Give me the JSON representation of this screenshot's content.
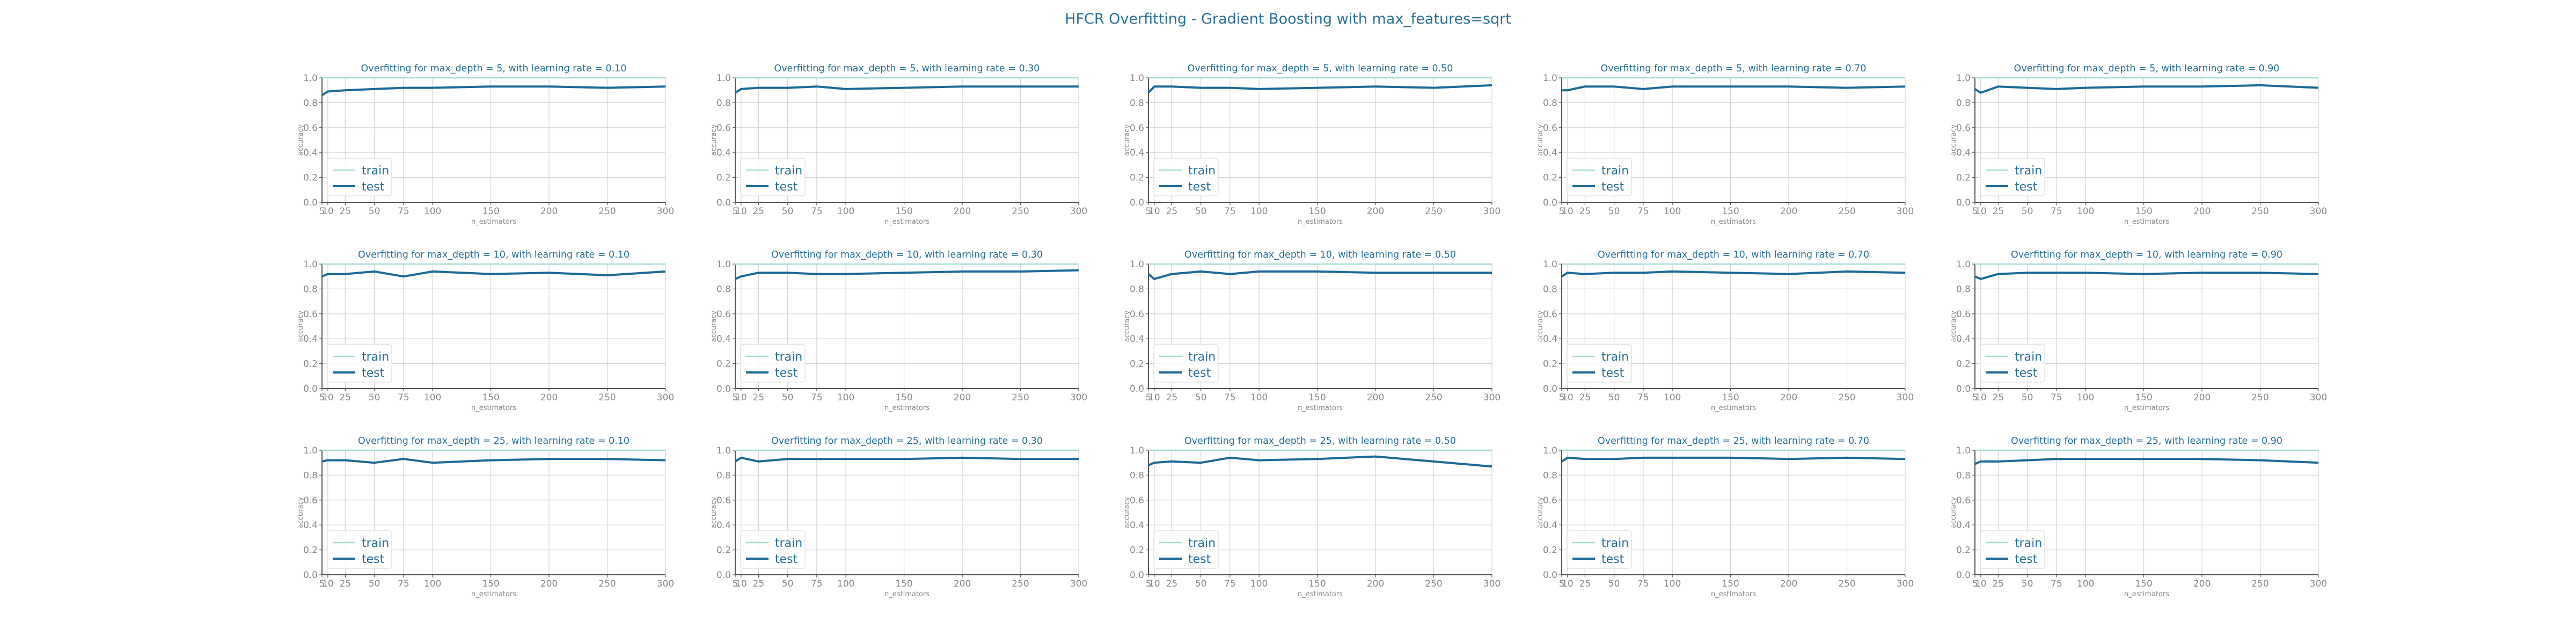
{
  "figure": {
    "title": "HFCR Overfitting - Gradient Boosting with max_features=sqrt"
  },
  "colors": {
    "train": "#a8dcd6",
    "test": "#1d6a96",
    "title": "#2a6f97",
    "grid": "#d4d4d4",
    "axis": "#555555",
    "tick_text": "#8a8a8a"
  },
  "chart_data": {
    "type": "line",
    "grid": true,
    "legend_placement": "lower-left",
    "xlabel": "n_estimators",
    "ylabel": "accuracy",
    "x": [
      5,
      10,
      25,
      50,
      75,
      100,
      150,
      200,
      250,
      300
    ],
    "xticks": [
      "5",
      "10",
      "25",
      "50",
      "75",
      "100",
      "150",
      "200",
      "250",
      "300"
    ],
    "xlim": [
      5,
      300
    ],
    "yticks": [
      "0.0",
      "0.2",
      "0.4",
      "0.6",
      "0.8",
      "1.0"
    ],
    "ylim": [
      0,
      1
    ],
    "legend": [
      "train",
      "test"
    ],
    "panels": [
      {
        "title": "Overfitting for max_depth = 5, with learning rate = 0.10",
        "series": [
          {
            "name": "train",
            "values": [
              1,
              1,
              1,
              1,
              1,
              1,
              1,
              1,
              1,
              1
            ]
          },
          {
            "name": "test",
            "values": [
              0.86,
              0.89,
              0.9,
              0.91,
              0.92,
              0.92,
              0.93,
              0.93,
              0.92,
              0.93
            ]
          }
        ]
      },
      {
        "title": "Overfitting for max_depth = 5, with learning rate = 0.30",
        "series": [
          {
            "name": "train",
            "values": [
              1,
              1,
              1,
              1,
              1,
              1,
              1,
              1,
              1,
              1
            ]
          },
          {
            "name": "test",
            "values": [
              0.88,
              0.91,
              0.92,
              0.92,
              0.93,
              0.91,
              0.92,
              0.93,
              0.93,
              0.93
            ]
          }
        ]
      },
      {
        "title": "Overfitting for max_depth = 5, with learning rate = 0.50",
        "series": [
          {
            "name": "train",
            "values": [
              1,
              1,
              1,
              1,
              1,
              1,
              1,
              1,
              1,
              1
            ]
          },
          {
            "name": "test",
            "values": [
              0.88,
              0.93,
              0.93,
              0.92,
              0.92,
              0.91,
              0.92,
              0.93,
              0.92,
              0.94
            ]
          }
        ]
      },
      {
        "title": "Overfitting for max_depth = 5, with learning rate = 0.70",
        "series": [
          {
            "name": "train",
            "values": [
              1,
              1,
              1,
              1,
              1,
              1,
              1,
              1,
              1,
              1
            ]
          },
          {
            "name": "test",
            "values": [
              0.9,
              0.9,
              0.93,
              0.93,
              0.91,
              0.93,
              0.93,
              0.93,
              0.92,
              0.93
            ]
          }
        ]
      },
      {
        "title": "Overfitting for max_depth = 5, with learning rate = 0.90",
        "series": [
          {
            "name": "train",
            "values": [
              1,
              1,
              1,
              1,
              1,
              1,
              1,
              1,
              1,
              1
            ]
          },
          {
            "name": "test",
            "values": [
              0.91,
              0.88,
              0.93,
              0.92,
              0.91,
              0.92,
              0.93,
              0.93,
              0.94,
              0.92
            ]
          }
        ]
      },
      {
        "title": "Overfitting for max_depth = 10, with learning rate = 0.10",
        "series": [
          {
            "name": "train",
            "values": [
              1,
              1,
              1,
              1,
              1,
              1,
              1,
              1,
              1,
              1
            ]
          },
          {
            "name": "test",
            "values": [
              0.9,
              0.92,
              0.92,
              0.94,
              0.9,
              0.94,
              0.92,
              0.93,
              0.91,
              0.94
            ]
          }
        ]
      },
      {
        "title": "Overfitting for max_depth = 10, with learning rate = 0.30",
        "series": [
          {
            "name": "train",
            "values": [
              1,
              1,
              1,
              1,
              1,
              1,
              1,
              1,
              1,
              1
            ]
          },
          {
            "name": "test",
            "values": [
              0.88,
              0.9,
              0.93,
              0.93,
              0.92,
              0.92,
              0.93,
              0.94,
              0.94,
              0.95
            ]
          }
        ]
      },
      {
        "title": "Overfitting for max_depth = 10, with learning rate = 0.50",
        "series": [
          {
            "name": "train",
            "values": [
              1,
              1,
              1,
              1,
              1,
              1,
              1,
              1,
              1,
              1
            ]
          },
          {
            "name": "test",
            "values": [
              0.92,
              0.88,
              0.92,
              0.94,
              0.92,
              0.94,
              0.94,
              0.93,
              0.93,
              0.93
            ]
          }
        ]
      },
      {
        "title": "Overfitting for max_depth = 10, with learning rate = 0.70",
        "series": [
          {
            "name": "train",
            "values": [
              1,
              1,
              1,
              1,
              1,
              1,
              1,
              1,
              1,
              1
            ]
          },
          {
            "name": "test",
            "values": [
              0.9,
              0.93,
              0.92,
              0.93,
              0.93,
              0.94,
              0.93,
              0.92,
              0.94,
              0.93
            ]
          }
        ]
      },
      {
        "title": "Overfitting for max_depth = 10, with learning rate = 0.90",
        "series": [
          {
            "name": "train",
            "values": [
              1,
              1,
              1,
              1,
              1,
              1,
              1,
              1,
              1,
              1
            ]
          },
          {
            "name": "test",
            "values": [
              0.9,
              0.88,
              0.92,
              0.93,
              0.93,
              0.93,
              0.92,
              0.93,
              0.93,
              0.92
            ]
          }
        ]
      },
      {
        "title": "Overfitting for max_depth = 25, with learning rate = 0.10",
        "series": [
          {
            "name": "train",
            "values": [
              1,
              1,
              1,
              1,
              1,
              1,
              1,
              1,
              1,
              1
            ]
          },
          {
            "name": "test",
            "values": [
              0.91,
              0.92,
              0.92,
              0.9,
              0.93,
              0.9,
              0.92,
              0.93,
              0.93,
              0.92
            ]
          }
        ]
      },
      {
        "title": "Overfitting for max_depth = 25, with learning rate = 0.30",
        "series": [
          {
            "name": "train",
            "values": [
              1,
              1,
              1,
              1,
              1,
              1,
              1,
              1,
              1,
              1
            ]
          },
          {
            "name": "test",
            "values": [
              0.91,
              0.94,
              0.91,
              0.93,
              0.93,
              0.93,
              0.93,
              0.94,
              0.93,
              0.93
            ]
          }
        ]
      },
      {
        "title": "Overfitting for max_depth = 25, with learning rate = 0.50",
        "series": [
          {
            "name": "train",
            "values": [
              1,
              1,
              1,
              1,
              1,
              1,
              1,
              1,
              1,
              1
            ]
          },
          {
            "name": "test",
            "values": [
              0.88,
              0.9,
              0.91,
              0.9,
              0.94,
              0.92,
              0.93,
              0.95,
              0.91,
              0.87
            ]
          }
        ]
      },
      {
        "title": "Overfitting for max_depth = 25, with learning rate = 0.70",
        "series": [
          {
            "name": "train",
            "values": [
              1,
              1,
              1,
              1,
              1,
              1,
              1,
              1,
              1,
              1
            ]
          },
          {
            "name": "test",
            "values": [
              0.91,
              0.94,
              0.93,
              0.93,
              0.94,
              0.94,
              0.94,
              0.93,
              0.94,
              0.93
            ]
          }
        ]
      },
      {
        "title": "Overfitting for max_depth = 25, with learning rate = 0.90",
        "series": [
          {
            "name": "train",
            "values": [
              1,
              1,
              1,
              1,
              1,
              1,
              1,
              1,
              1,
              1
            ]
          },
          {
            "name": "test",
            "values": [
              0.89,
              0.91,
              0.91,
              0.92,
              0.93,
              0.93,
              0.93,
              0.93,
              0.92,
              0.9
            ]
          }
        ]
      }
    ]
  }
}
